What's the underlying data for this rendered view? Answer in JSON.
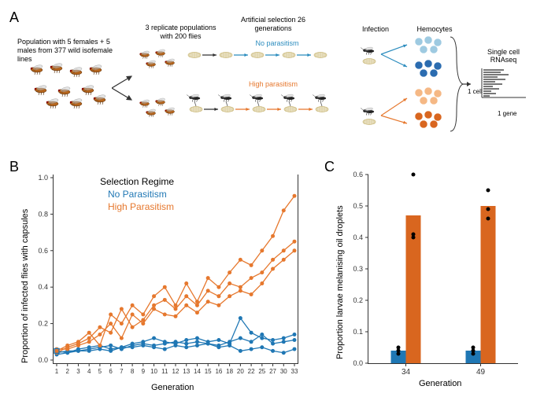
{
  "panelA": {
    "label": "A",
    "step1": "Population with 5 females + 5 males\nfrom 377 wild isofemale lines",
    "step2": "3 replicate populations\nwith 200 flies",
    "step3": "Artificial selection\n26 generations",
    "branch_no": "No parasitism",
    "branch_high": "High parasitism",
    "infection_label": "Infection",
    "hemocytes_label": "Hemocytes",
    "rnaseq_title": "Single cell\nRNAseq",
    "rnaseq_x": "1 gene",
    "rnaseq_y": "1 cell",
    "colors": {
      "no_parasitism_text": "#2b8cbe",
      "high_parasitism_text": "#e6782e",
      "hemocyte_light_blue": "#9ecae1",
      "hemocyte_blue": "#2b6cb0",
      "hemocyte_light_orange": "#f5b885",
      "hemocyte_orange": "#d9661f",
      "arrow_black": "#333333",
      "fly_body": "#b5651d",
      "wasp_body": "#222222",
      "pupa": "#e8dfc0"
    }
  },
  "panelB": {
    "label": "B",
    "y_axis_label": "Proportion of infected flies with capsules",
    "x_axis_label": "Generation",
    "legend_title": "Selection Regime",
    "legend_no": "No Parasitism",
    "legend_high": "High Parasitism",
    "ylim": [
      0,
      1.0
    ],
    "ytick_step": 0.2,
    "x_ticks": [
      1,
      2,
      3,
      4,
      5,
      6,
      7,
      8,
      9,
      10,
      11,
      12,
      13,
      14,
      15,
      16,
      18,
      20,
      22,
      25,
      27,
      30,
      33
    ],
    "colors": {
      "no_parasitism": "#1f77b4",
      "high_parasitism": "#e6782e",
      "axis": "#333333",
      "bg": "#ffffff"
    },
    "series_no_parasitism": [
      {
        "rep": 1,
        "x": [
          1,
          2,
          3,
          4,
          5,
          6,
          7,
          8,
          9,
          10,
          11,
          12,
          13,
          14,
          15,
          16,
          18,
          20,
          22,
          25,
          27,
          30,
          33
        ],
        "y": [
          0.05,
          0.04,
          0.06,
          0.07,
          0.08,
          0.06,
          0.07,
          0.09,
          0.1,
          0.12,
          0.1,
          0.09,
          0.11,
          0.12,
          0.1,
          0.11,
          0.09,
          0.23,
          0.15,
          0.12,
          0.11,
          0.12,
          0.14
        ]
      },
      {
        "rep": 2,
        "x": [
          1,
          2,
          3,
          4,
          5,
          6,
          7,
          8,
          9,
          10,
          11,
          12,
          13,
          14,
          15,
          16,
          18,
          20,
          22,
          25,
          27,
          30,
          33
        ],
        "y": [
          0.04,
          0.05,
          0.05,
          0.06,
          0.07,
          0.08,
          0.06,
          0.08,
          0.09,
          0.08,
          0.09,
          0.1,
          0.09,
          0.1,
          0.09,
          0.08,
          0.1,
          0.12,
          0.1,
          0.14,
          0.09,
          0.1,
          0.11
        ]
      },
      {
        "rep": 3,
        "x": [
          1,
          2,
          3,
          4,
          5,
          6,
          7,
          8,
          9,
          10,
          11,
          12,
          13,
          14,
          15,
          16,
          18,
          20,
          22,
          25,
          27,
          30,
          33
        ],
        "y": [
          0.03,
          0.04,
          0.05,
          0.05,
          0.06,
          0.05,
          0.07,
          0.07,
          0.08,
          0.07,
          0.06,
          0.08,
          0.07,
          0.08,
          0.09,
          0.07,
          0.08,
          0.05,
          0.06,
          0.07,
          0.05,
          0.04,
          0.06
        ]
      }
    ],
    "series_high_parasitism": [
      {
        "rep": 1,
        "x": [
          1,
          2,
          3,
          4,
          5,
          6,
          7,
          8,
          9,
          10,
          11,
          12,
          13,
          14,
          15,
          16,
          18,
          20,
          22,
          25,
          27,
          30,
          33
        ],
        "y": [
          0.05,
          0.08,
          0.1,
          0.15,
          0.08,
          0.25,
          0.2,
          0.3,
          0.25,
          0.35,
          0.4,
          0.3,
          0.42,
          0.32,
          0.45,
          0.4,
          0.48,
          0.55,
          0.52,
          0.6,
          0.68,
          0.82,
          0.9
        ]
      },
      {
        "rep": 2,
        "x": [
          1,
          2,
          3,
          4,
          5,
          6,
          7,
          8,
          9,
          10,
          11,
          12,
          13,
          14,
          15,
          16,
          18,
          20,
          22,
          25,
          27,
          30,
          33
        ],
        "y": [
          0.04,
          0.07,
          0.09,
          0.12,
          0.18,
          0.15,
          0.28,
          0.18,
          0.22,
          0.3,
          0.33,
          0.28,
          0.35,
          0.3,
          0.38,
          0.35,
          0.42,
          0.4,
          0.45,
          0.48,
          0.55,
          0.6,
          0.65
        ]
      },
      {
        "rep": 3,
        "x": [
          1,
          2,
          3,
          4,
          5,
          6,
          7,
          8,
          9,
          10,
          11,
          12,
          13,
          14,
          15,
          16,
          18,
          20,
          22,
          25,
          27,
          30,
          33
        ],
        "y": [
          0.06,
          0.06,
          0.08,
          0.1,
          0.14,
          0.2,
          0.12,
          0.25,
          0.2,
          0.28,
          0.25,
          0.24,
          0.3,
          0.26,
          0.32,
          0.3,
          0.35,
          0.38,
          0.36,
          0.42,
          0.5,
          0.55,
          0.6
        ]
      }
    ]
  },
  "panelC": {
    "label": "C",
    "y_axis_label": "Proportion larvae melanising oil droplets",
    "x_axis_label": "Generation",
    "ylim": [
      0,
      0.6
    ],
    "ytick_step": 0.1,
    "categories": [
      "34",
      "49"
    ],
    "bars": [
      {
        "gen": "34",
        "regime": "no",
        "value": 0.04,
        "points": [
          0.04,
          0.03,
          0.05
        ]
      },
      {
        "gen": "34",
        "regime": "high",
        "value": 0.47,
        "points": [
          0.6,
          0.4,
          0.41
        ]
      },
      {
        "gen": "49",
        "regime": "no",
        "value": 0.04,
        "points": [
          0.04,
          0.03,
          0.05
        ]
      },
      {
        "gen": "49",
        "regime": "high",
        "value": 0.5,
        "points": [
          0.55,
          0.49,
          0.46
        ]
      }
    ],
    "colors": {
      "no_parasitism": "#1f77b4",
      "high_parasitism": "#d9661f",
      "point": "#000000",
      "axis": "#333333"
    },
    "bar_width": 0.4
  }
}
